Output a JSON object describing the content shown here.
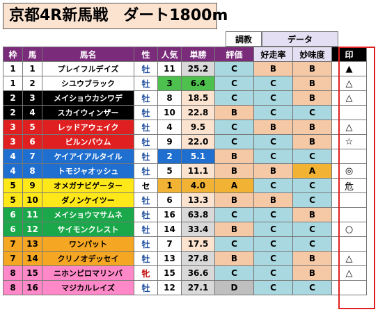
{
  "title": "京都4R新馬戦　ダート1800m",
  "header_groups": {
    "training": "調教",
    "data": "データ"
  },
  "headers": [
    "枠",
    "馬",
    "馬名",
    "性",
    "人気",
    "単勝",
    "評価",
    "好走率",
    "妙味度",
    "印"
  ],
  "colors": {
    "header_bg": "#7a2b7a",
    "grade_B": "#f6c9a6",
    "grade_C": "#a9d8e0",
    "grade_A": "#f2b233",
    "grade_D": "#bfbfbf"
  },
  "rows": [
    {
      "waku": "1",
      "uma": "1",
      "name": "プレイフルデイズ",
      "sex": "牡",
      "ninki": "11",
      "tansho": "25.2",
      "hyoka": "C",
      "koso": "B",
      "myomi": "B",
      "shirushi": "▲"
    },
    {
      "waku": "1",
      "uma": "2",
      "name": "シユウブラック",
      "sex": "牡",
      "ninki": "3",
      "tansho": "6.4",
      "hyoka": "C",
      "koso": "C",
      "myomi": "B",
      "shirushi": "△"
    },
    {
      "waku": "2",
      "uma": "3",
      "name": "メイショウカシワデ",
      "sex": "牡",
      "ninki": "8",
      "tansho": "18.5",
      "hyoka": "C",
      "koso": "C",
      "myomi": "B",
      "shirushi": "△"
    },
    {
      "waku": "2",
      "uma": "4",
      "name": "スカイウィンザー",
      "sex": "牡",
      "ninki": "10",
      "tansho": "22.8",
      "hyoka": "B",
      "koso": "C",
      "myomi": "C",
      "shirushi": ""
    },
    {
      "waku": "3",
      "uma": "5",
      "name": "レッドアウェイク",
      "sex": "牡",
      "ninki": "4",
      "tansho": "9.5",
      "hyoka": "C",
      "koso": "B",
      "myomi": "B",
      "shirushi": "△"
    },
    {
      "waku": "3",
      "uma": "6",
      "name": "ビルンバウム",
      "sex": "牡",
      "ninki": "9",
      "tansho": "22.0",
      "hyoka": "C",
      "koso": "C",
      "myomi": "B",
      "shirushi": "☆"
    },
    {
      "waku": "4",
      "uma": "7",
      "name": "ケイアイアルタイル",
      "sex": "牡",
      "ninki": "2",
      "tansho": "5.1",
      "hyoka": "B",
      "koso": "C",
      "myomi": "C",
      "shirushi": ""
    },
    {
      "waku": "4",
      "uma": "8",
      "name": "トモジャオッシュ",
      "sex": "牡",
      "ninki": "5",
      "tansho": "11.1",
      "hyoka": "B",
      "koso": "B",
      "myomi": "A",
      "shirushi": "◎"
    },
    {
      "waku": "5",
      "uma": "9",
      "name": "オメガナビゲーター",
      "sex": "セ",
      "ninki": "1",
      "tansho": "4.0",
      "hyoka": "A",
      "koso": "C",
      "myomi": "C",
      "shirushi": "危"
    },
    {
      "waku": "5",
      "uma": "10",
      "name": "ダノンケイツー",
      "sex": "牡",
      "ninki": "6",
      "tansho": "13.3",
      "hyoka": "B",
      "koso": "B",
      "myomi": "C",
      "shirushi": ""
    },
    {
      "waku": "6",
      "uma": "11",
      "name": "メイショウマサムネ",
      "sex": "牡",
      "ninki": "16",
      "tansho": "63.8",
      "hyoka": "C",
      "koso": "C",
      "myomi": "B",
      "shirushi": ""
    },
    {
      "waku": "6",
      "uma": "12",
      "name": "サイモンクレスト",
      "sex": "牡",
      "ninki": "14",
      "tansho": "33.4",
      "hyoka": "B",
      "koso": "C",
      "myomi": "C",
      "shirushi": "○"
    },
    {
      "waku": "7",
      "uma": "13",
      "name": "ワンパット",
      "sex": "牡",
      "ninki": "7",
      "tansho": "17.5",
      "hyoka": "C",
      "koso": "C",
      "myomi": "C",
      "shirushi": ""
    },
    {
      "waku": "7",
      "uma": "14",
      "name": "クリノオデッセイ",
      "sex": "牡",
      "ninki": "13",
      "tansho": "27.8",
      "hyoka": "B",
      "koso": "C",
      "myomi": "B",
      "shirushi": "△"
    },
    {
      "waku": "8",
      "uma": "15",
      "name": "ニホンピロマリンバ",
      "sex": "牝",
      "ninki": "15",
      "tansho": "36.6",
      "hyoka": "C",
      "koso": "C",
      "myomi": "B",
      "shirushi": "△"
    },
    {
      "waku": "8",
      "uma": "16",
      "name": "マジカルレイズ",
      "sex": "牡",
      "ninki": "12",
      "tansho": "27.1",
      "hyoka": "D",
      "koso": "C",
      "myomi": "C",
      "shirushi": ""
    }
  ]
}
